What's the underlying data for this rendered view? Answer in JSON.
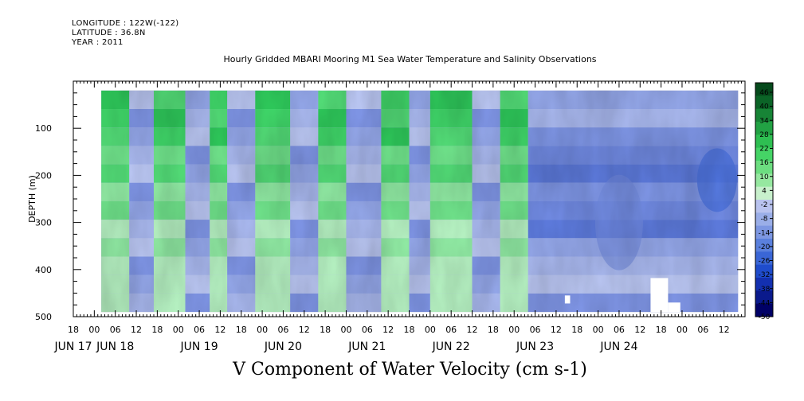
{
  "header": {
    "longitude": "LONGITUDE : 122W(-122)",
    "latitude": "LATITUDE : 36.8N",
    "year": "YEAR : 2011"
  },
  "chart_data": {
    "type": "heatmap",
    "title": "Hourly Gridded MBARI Mooring M1 Sea Water Temperature and Salinity Observations",
    "footer_title": "V Component of Water Velocity (cm s-1)",
    "ylabel": "DEPTH (m)",
    "xlabel": "",
    "y_range": [
      0,
      500
    ],
    "y_reversed": true,
    "y_ticks": [
      100,
      200,
      300,
      400,
      500
    ],
    "y_tick_labels": [
      "100",
      "200",
      "300",
      "400",
      "500"
    ],
    "x_range_hours": [
      -6,
      186
    ],
    "x_hour_ticks": [
      -6,
      0,
      6,
      12,
      18,
      24,
      30,
      36,
      42,
      48,
      54,
      60,
      66,
      72,
      78,
      84,
      90,
      96,
      102,
      108,
      114,
      120,
      126,
      132,
      138,
      144,
      150,
      156,
      162,
      168,
      174,
      180
    ],
    "x_hour_tick_labels": [
      "18",
      "00",
      "06",
      "12",
      "18",
      "00",
      "06",
      "12",
      "18",
      "00",
      "06",
      "12",
      "18",
      "00",
      "06",
      "12",
      "18",
      "00",
      "06",
      "12",
      "18",
      "00",
      "06",
      "12",
      "18",
      "00",
      "06",
      "12",
      "18",
      "00",
      "06",
      "12"
    ],
    "day_labels": [
      {
        "label": "JUN 17",
        "hour": -6
      },
      {
        "label": "JUN 18",
        "hour": 6
      },
      {
        "label": "JUN 19",
        "hour": 30
      },
      {
        "label": "JUN 20",
        "hour": 54
      },
      {
        "label": "JUN 21",
        "hour": 78
      },
      {
        "label": "JUN 22",
        "hour": 102
      },
      {
        "label": "JUN 23",
        "hour": 126
      },
      {
        "label": "JUN 24",
        "hour": 150
      }
    ],
    "data_extent": {
      "hour_start": 2,
      "hour_end": 184,
      "depth_top": 20,
      "depth_bottom": 490
    },
    "colorbar": {
      "levels": [
        -50,
        -44,
        -38,
        -32,
        -26,
        -20,
        -14,
        -8,
        -2,
        4,
        10,
        16,
        22,
        28,
        34,
        40,
        46
      ],
      "labels": [
        "46",
        "40",
        "34",
        "28",
        "22",
        "16",
        "10",
        "4",
        "-2",
        "-8",
        "-14",
        "-20",
        "-26",
        "-32",
        "-38",
        "-44",
        "-50"
      ],
      "colors": [
        "#000066",
        "#0a1a8c",
        "#1330b0",
        "#1f4ccc",
        "#3a66d6",
        "#5a80dd",
        "#7d97e2",
        "#9aaee8",
        "#b9c3ef",
        "#c8f0cc",
        "#96e8a0",
        "#6cde80",
        "#45d466",
        "#2ebf52",
        "#22a244",
        "#178436",
        "#0b6427",
        "#064a1c"
      ],
      "range": [
        -50,
        52
      ]
    },
    "bands": [
      {
        "start": 2,
        "end": 10,
        "type": "pos"
      },
      {
        "start": 10,
        "end": 17,
        "type": "neg"
      },
      {
        "start": 17,
        "end": 26,
        "type": "pos"
      },
      {
        "start": 26,
        "end": 33,
        "type": "neg"
      },
      {
        "start": 33,
        "end": 38,
        "type": "pos"
      },
      {
        "start": 38,
        "end": 46,
        "type": "neg"
      },
      {
        "start": 46,
        "end": 56,
        "type": "pos"
      },
      {
        "start": 56,
        "end": 64,
        "type": "neg"
      },
      {
        "start": 64,
        "end": 72,
        "type": "pos"
      },
      {
        "start": 72,
        "end": 82,
        "type": "neg"
      },
      {
        "start": 82,
        "end": 90,
        "type": "pos"
      },
      {
        "start": 90,
        "end": 96,
        "type": "neg"
      },
      {
        "start": 96,
        "end": 108,
        "type": "pos"
      },
      {
        "start": 108,
        "end": 116,
        "type": "neg"
      },
      {
        "start": 116,
        "end": 124,
        "type": "pos"
      },
      {
        "start": 124,
        "end": 184,
        "type": "neg"
      }
    ],
    "missing_data": [
      {
        "hour_start": 134.5,
        "hour_end": 136,
        "depth_top": 455,
        "depth_bottom": 472
      },
      {
        "hour_start": 159,
        "hour_end": 164,
        "depth_top": 418,
        "depth_bottom": 490
      },
      {
        "hour_start": 164,
        "hour_end": 167.5,
        "depth_top": 470,
        "depth_bottom": 490
      }
    ]
  }
}
